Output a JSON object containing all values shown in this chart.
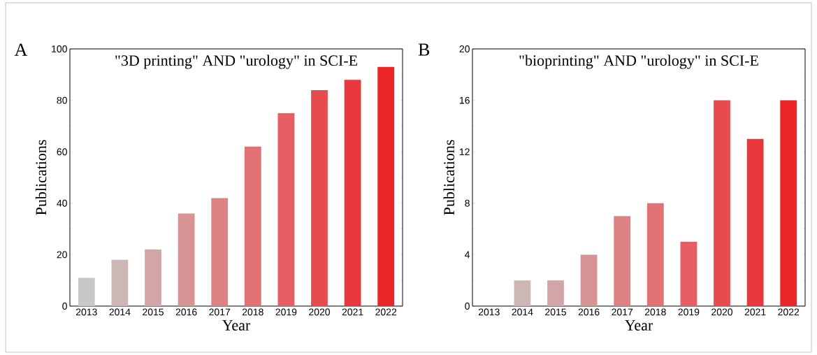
{
  "chart_data": [
    {
      "type": "bar",
      "title": "\"3D printing\" AND \"urology\" in SCI-E",
      "xlabel": "Year",
      "ylabel": "Publications",
      "annotations": [
        "A"
      ],
      "categories": [
        "2013",
        "2014",
        "2015",
        "2016",
        "2017",
        "2018",
        "2019",
        "2020",
        "2021",
        "2022"
      ],
      "values": [
        11,
        18,
        22,
        36,
        42,
        62,
        75,
        84,
        88,
        93
      ],
      "colors": [
        "#c8c8c8",
        "#cdb6b6",
        "#d3a5a6",
        "#d89495",
        "#dd8284",
        "#e27173",
        "#e65f62",
        "#e84b4d",
        "#e9383b",
        "#ea2629"
      ],
      "ylim": [
        0,
        100
      ],
      "yticks": [
        0,
        20,
        40,
        60,
        80,
        100
      ],
      "grid": false
    },
    {
      "type": "bar",
      "title": "\"bioprinting\" AND \"urology\" in SCI-E",
      "xlabel": "Year",
      "ylabel": "Publications",
      "annotations": [
        "B"
      ],
      "categories": [
        "2013",
        "2014",
        "2015",
        "2016",
        "2017",
        "2018",
        "2019",
        "2020",
        "2021",
        "2022"
      ],
      "values": [
        0,
        2,
        2,
        4,
        7,
        8,
        5,
        16,
        13,
        16
      ],
      "colors": [
        "#c8c8c8",
        "#cdb6b6",
        "#d3a5a6",
        "#d89495",
        "#dd8284",
        "#e27173",
        "#e65f62",
        "#e84b4d",
        "#e9383b",
        "#ea2629"
      ],
      "ylim": [
        0,
        20
      ],
      "yticks": [
        0,
        4,
        8,
        12,
        16,
        20
      ],
      "grid": false
    }
  ]
}
